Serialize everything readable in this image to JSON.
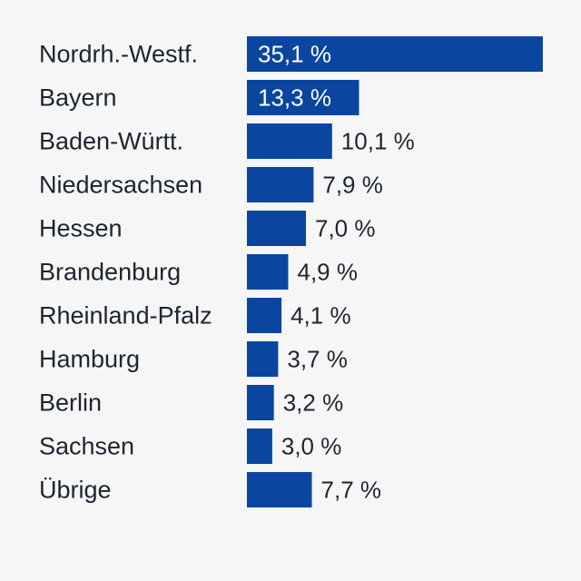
{
  "chart_data": {
    "type": "bar",
    "orientation": "horizontal",
    "categories": [
      "Nordrh.-Westf.",
      "Bayern",
      "Baden-Württ.",
      "Niedersachsen",
      "Hessen",
      "Brandenburg",
      "Rheinland-Pfalz",
      "Hamburg",
      "Berlin",
      "Sachsen",
      "Übrige"
    ],
    "values": [
      35.1,
      13.3,
      10.1,
      7.9,
      7.0,
      4.9,
      4.1,
      3.7,
      3.2,
      3.0,
      7.7
    ],
    "value_labels": [
      "35,1 %",
      "13,3 %",
      "10,1 %",
      "7,9 %",
      "7,0 %",
      "4,9 %",
      "4,1 %",
      "3,7 %",
      "3,2 %",
      "3,0 %",
      "7,7 %"
    ],
    "unit": "%",
    "xlim": [
      0,
      35.1
    ],
    "title": "",
    "xlabel": "",
    "ylabel": "",
    "grid": false,
    "legend": "none",
    "colors": {
      "bar": "#0a46a0",
      "label_inside": "#ffffff",
      "label_outside": "#1c2530",
      "category_text": "#1c2530",
      "background": "#f6f6f6"
    }
  }
}
